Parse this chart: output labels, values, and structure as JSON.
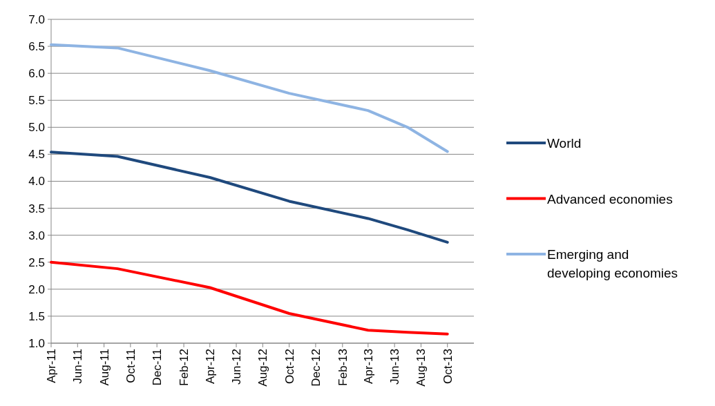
{
  "chart_data": {
    "type": "line",
    "x": [
      "2011-04",
      "2011-09",
      "2012-04",
      "2012-10",
      "2013-04",
      "2013-07",
      "2013-10"
    ],
    "xlim": [
      "2011-04",
      "2013-12"
    ],
    "xticks": [
      {
        "value": "2011-04",
        "label": "Apr-11"
      },
      {
        "value": "2011-06",
        "label": "Jun-11"
      },
      {
        "value": "2011-08",
        "label": "Aug-11"
      },
      {
        "value": "2011-10",
        "label": "Oct-11"
      },
      {
        "value": "2011-12",
        "label": "Dec-11"
      },
      {
        "value": "2012-02",
        "label": "Feb-12"
      },
      {
        "value": "2012-04",
        "label": "Apr-12"
      },
      {
        "value": "2012-06",
        "label": "Jun-12"
      },
      {
        "value": "2012-08",
        "label": "Aug-12"
      },
      {
        "value": "2012-10",
        "label": "Oct-12"
      },
      {
        "value": "2012-12",
        "label": "Dec-12"
      },
      {
        "value": "2013-02",
        "label": "Feb-13"
      },
      {
        "value": "2013-04",
        "label": "Apr-13"
      },
      {
        "value": "2013-06",
        "label": "Jun-13"
      },
      {
        "value": "2013-08",
        "label": "Aug-13"
      },
      {
        "value": "2013-10",
        "label": "Oct-13"
      }
    ],
    "ylim": [
      1,
      7
    ],
    "yticks": [
      {
        "value": 1,
        "label": "1.0"
      },
      {
        "value": 1.5,
        "label": "1.5"
      },
      {
        "value": 2,
        "label": "2.0"
      },
      {
        "value": 2.5,
        "label": "2.5"
      },
      {
        "value": 3,
        "label": "3.0"
      },
      {
        "value": 3.5,
        "label": "3.5"
      },
      {
        "value": 4,
        "label": "4.0"
      },
      {
        "value": 4.5,
        "label": "4.5"
      },
      {
        "value": 5,
        "label": "5.0"
      },
      {
        "value": 5.5,
        "label": "5.5"
      },
      {
        "value": 6,
        "label": "6.0"
      },
      {
        "value": 6.5,
        "label": "6.5"
      },
      {
        "value": 7,
        "label": "7.0"
      }
    ],
    "grid": "y",
    "legend": "right",
    "marker": "none",
    "series": [
      {
        "name": "World",
        "color": "#1f497d",
        "values": [
          4.54,
          4.46,
          4.07,
          3.63,
          3.31,
          3.1,
          2.87
        ]
      },
      {
        "name": "Advanced economies",
        "color": "#ff0000",
        "values": [
          2.5,
          2.38,
          2.03,
          1.55,
          1.24,
          1.2,
          1.17
        ]
      },
      {
        "name": "Emerging and developing economies",
        "color": "#8eb4e3",
        "values": [
          6.53,
          6.47,
          6.05,
          5.63,
          5.31,
          5.0,
          4.55
        ]
      }
    ]
  }
}
